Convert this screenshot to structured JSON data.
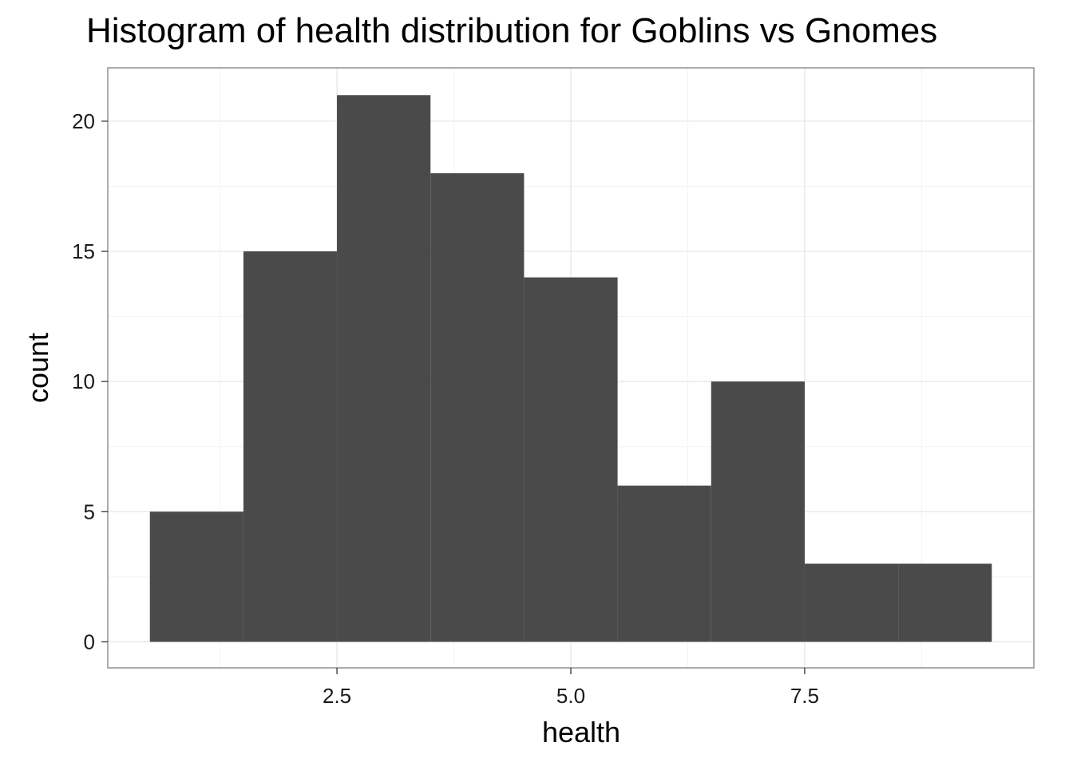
{
  "chart_data": {
    "type": "bar",
    "subtype": "histogram",
    "title": "Histogram of health distribution for Goblins vs Gnomes",
    "xlabel": "health",
    "ylabel": "count",
    "bins": [
      {
        "x_start": 0.5,
        "x_end": 1.5,
        "count": 5
      },
      {
        "x_start": 1.5,
        "x_end": 2.5,
        "count": 15
      },
      {
        "x_start": 2.5,
        "x_end": 3.5,
        "count": 21
      },
      {
        "x_start": 3.5,
        "x_end": 4.5,
        "count": 18
      },
      {
        "x_start": 4.5,
        "x_end": 5.5,
        "count": 14
      },
      {
        "x_start": 5.5,
        "x_end": 6.5,
        "count": 6
      },
      {
        "x_start": 6.5,
        "x_end": 7.5,
        "count": 10
      },
      {
        "x_start": 7.5,
        "x_end": 8.5,
        "count": 3
      },
      {
        "x_start": 8.5,
        "x_end": 9.5,
        "count": 3
      }
    ],
    "xlim": [
      0.05,
      9.95
    ],
    "ylim": [
      -1,
      22.05
    ],
    "x_ticks": [
      {
        "value": 2.5,
        "label": "2.5"
      },
      {
        "value": 5.0,
        "label": "5.0"
      },
      {
        "value": 7.5,
        "label": "7.5"
      }
    ],
    "y_ticks": [
      {
        "value": 0,
        "label": "0"
      },
      {
        "value": 5,
        "label": "5"
      },
      {
        "value": 10,
        "label": "10"
      },
      {
        "value": 15,
        "label": "15"
      },
      {
        "value": 20,
        "label": "20"
      }
    ],
    "x_minor_ticks": [
      1.25,
      3.75,
      6.25,
      8.75
    ],
    "y_minor_ticks": [
      2.5,
      7.5,
      12.5,
      17.5
    ],
    "grid": true,
    "legend": "none",
    "colors": {
      "bar_fill": "#4a4a4a",
      "panel_border": "#7f7f7f",
      "grid_major": "#e6e6e6",
      "grid_minor": "#f3f3f3",
      "tick": "#333333"
    }
  }
}
